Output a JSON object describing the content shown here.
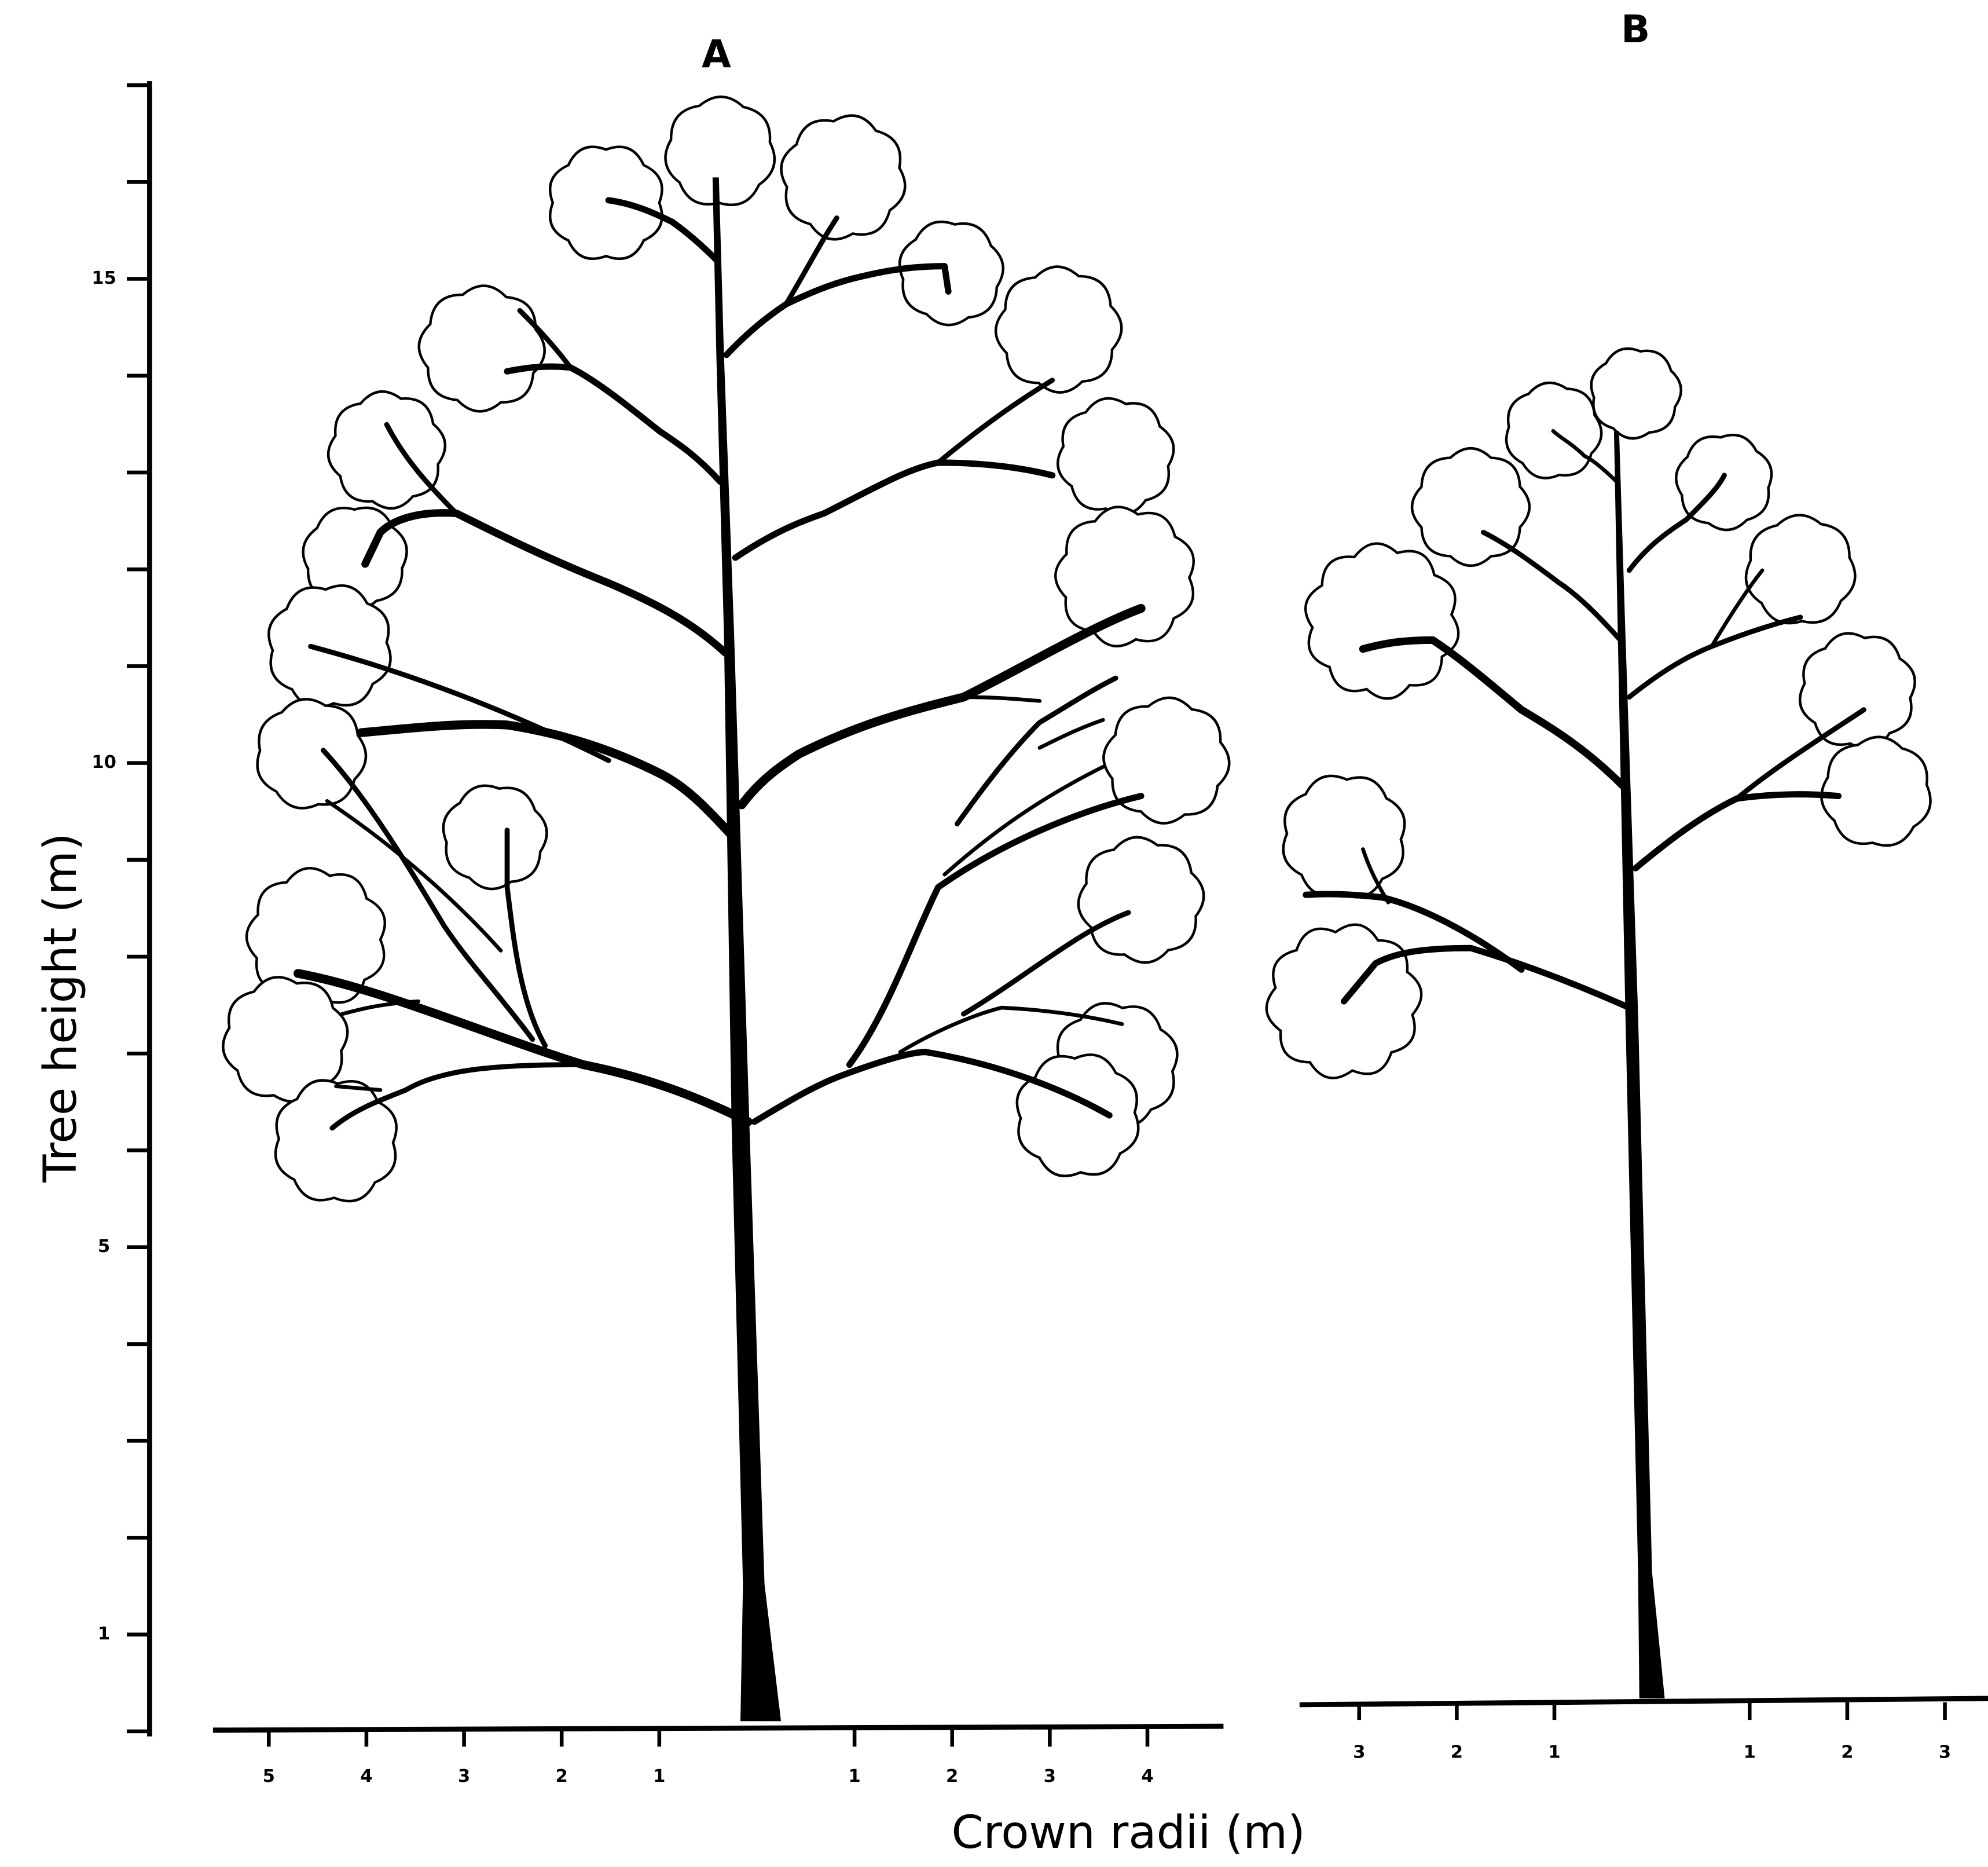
{
  "panels": [
    {
      "title": "A",
      "x_ticks_left": [
        5,
        4,
        3,
        2,
        1
      ],
      "x_ticks_right": [
        1,
        2,
        3,
        4
      ]
    },
    {
      "title": "B",
      "x_ticks_left": [
        3,
        2,
        1
      ],
      "x_ticks_right": [
        1,
        2,
        3
      ]
    }
  ],
  "y_axis": {
    "label": "Tree height (m)",
    "ticks": [
      15,
      10,
      5,
      1
    ]
  },
  "x_axis": {
    "label": "Crown radii (m)"
  }
}
